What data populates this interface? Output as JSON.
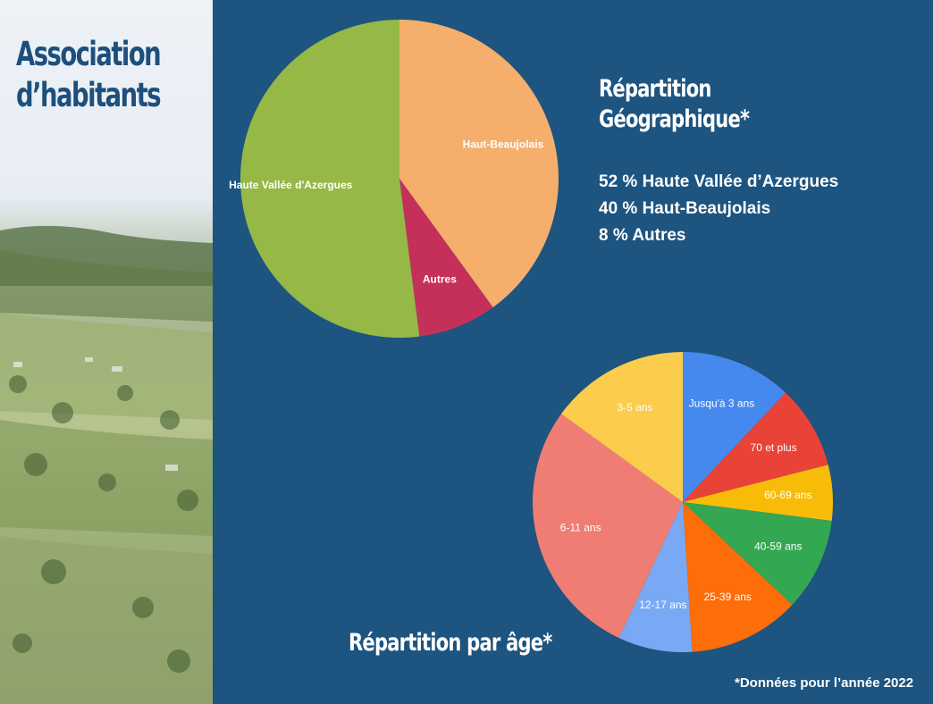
{
  "sidebar": {
    "title_line1": "Association",
    "title_line2": "d’habitants"
  },
  "geo": {
    "title_line1": "Répartition",
    "title_line2": "Géographique*",
    "stats": [
      "52 % Haute Vallée d’Azergues",
      "40 % Haut-Beaujolais",
      "8 % Autres"
    ]
  },
  "age": {
    "title": "Répartition par âge*"
  },
  "footnote": "*Données pour l’année 2022",
  "chart_data": [
    {
      "type": "pie",
      "title": "Répartition Géographique*",
      "categories": [
        "Haut-Beaujolais",
        "Autres",
        "Haute Vallée d'Azergues"
      ],
      "values": [
        40,
        8,
        52
      ],
      "colors": [
        "#f5ae6b",
        "#c4305a",
        "#95b846"
      ],
      "start_angle": 0,
      "direction": "clockwise"
    },
    {
      "type": "pie",
      "title": "Répartition par âge*",
      "categories": [
        "Jusqu'à 3 ans",
        "70 et plus",
        "60-69 ans",
        "40-59 ans",
        "25-39 ans",
        "12-17 ans",
        "6-11 ans",
        "3-5 ans"
      ],
      "values": [
        12,
        9,
        6,
        10,
        12,
        8,
        28,
        15
      ],
      "colors": [
        "#4589ee",
        "#e94236",
        "#f8bc08",
        "#34a752",
        "#fd6d0a",
        "#79a9f5",
        "#f07d73",
        "#fccd4c"
      ],
      "start_angle": 0,
      "direction": "clockwise"
    }
  ]
}
